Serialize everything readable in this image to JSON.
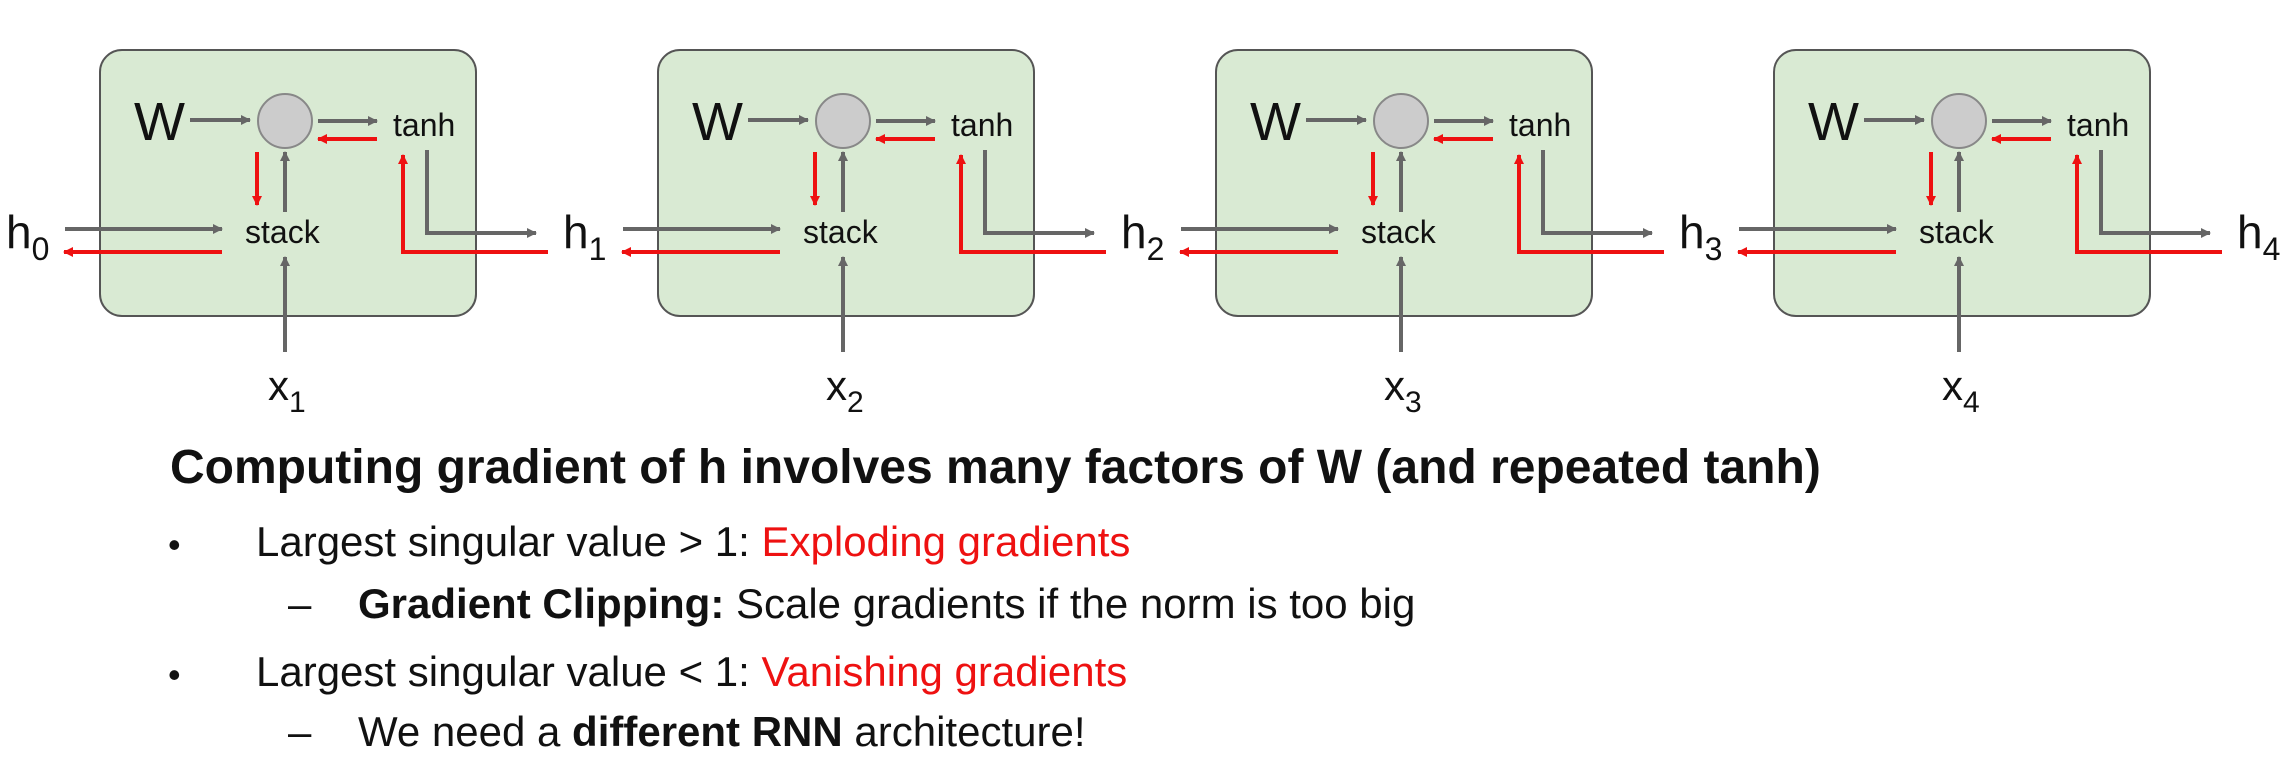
{
  "diagram": {
    "cells": [
      {
        "w": "W",
        "tanh": "tanh",
        "stack": "stack",
        "x_main": "x",
        "x_sub": "1"
      },
      {
        "w": "W",
        "tanh": "tanh",
        "stack": "stack",
        "x_main": "x",
        "x_sub": "2"
      },
      {
        "w": "W",
        "tanh": "tanh",
        "stack": "stack",
        "x_main": "x",
        "x_sub": "3"
      },
      {
        "w": "W",
        "tanh": "tanh",
        "stack": "stack",
        "x_main": "x",
        "x_sub": "4"
      }
    ],
    "hidden_states": [
      {
        "main": "h",
        "sub": "0"
      },
      {
        "main": "h",
        "sub": "1"
      },
      {
        "main": "h",
        "sub": "2"
      },
      {
        "main": "h",
        "sub": "3"
      },
      {
        "main": "h",
        "sub": "4"
      }
    ],
    "colors": {
      "cell_fill": "#d9ead3",
      "cell_stroke": "#555555",
      "forward": "#666666",
      "backward": "#ee1111",
      "node": "#cccccc"
    }
  },
  "text": {
    "heading": "Computing gradient of h involves many factors of W (and repeated tanh)",
    "bullet_symbol": "•",
    "dash_symbol": "–",
    "b1_prefix": "Largest singular value > 1: ",
    "b1_red": "Exploding gradients",
    "b1_sub_bold": "Gradient Clipping:",
    "b1_sub_rest": " Scale gradients if the norm is too big",
    "b2_prefix": "Largest singular value < 1: ",
    "b2_red": "Vanishing gradients",
    "b2_sub_pre": "We need a ",
    "b2_sub_bold": "different RNN",
    "b2_sub_post": " architecture!"
  }
}
